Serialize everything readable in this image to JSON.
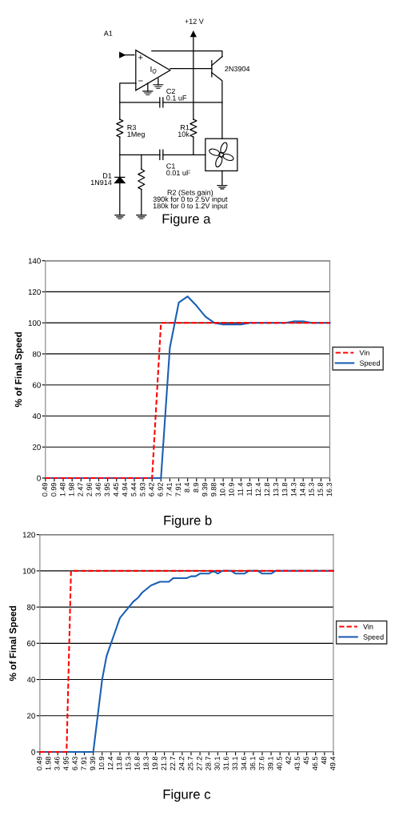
{
  "chart_data": [
    {
      "type": "other",
      "title": "Figure a",
      "annotations": [
        "A1",
        "+12 V",
        "+",
        "−",
        "I$_{Q}$",
        "2N3904",
        "C2\n0.1 uF",
        "R3\n1Meg",
        "R1\n10k",
        "C1\n0.01 uF",
        "D1\n1N914",
        "R2 (Sets gain)\n390k for 0 to 2.5V input\n180k for 0 to 1.2V input"
      ]
    },
    {
      "type": "line",
      "title": "Figure b",
      "ylabel": "% of Final Speed",
      "categories": [
        "0.49",
        "0.99",
        "1.48",
        "1.98",
        "2.47",
        "2.96",
        "3.46",
        "3.95",
        "4.45",
        "4.94",
        "5.44",
        "5.93",
        "6.42",
        "6.92",
        "7.41",
        "7.91",
        "8.4",
        "8.9",
        "9.39",
        "9.88",
        "10.4",
        "10.9",
        "11.4",
        "11.9",
        "12.4",
        "12.8",
        "13.3",
        "13.8",
        "14.3",
        "14.8",
        "15.3",
        "15.8",
        "16.3"
      ],
      "series": [
        {
          "name": "Vin",
          "color": "#ff0000",
          "line_style": "dashed",
          "values": [
            0,
            0,
            0,
            0,
            0,
            0,
            0,
            0,
            0,
            0,
            0,
            0,
            0,
            100,
            100,
            100,
            100,
            100,
            100,
            100,
            100,
            100,
            100,
            100,
            100,
            100,
            100,
            100,
            100,
            100,
            100,
            100,
            100
          ]
        },
        {
          "name": "Speed",
          "color": "#1a5fb4",
          "line_style": "solid",
          "values": [
            0,
            0,
            0,
            0,
            0,
            0,
            0,
            0,
            0,
            0,
            0,
            0,
            0,
            0,
            84,
            113,
            117,
            111,
            104,
            100,
            99,
            99,
            99,
            100,
            100,
            100,
            100,
            100,
            101,
            101,
            100,
            100,
            100
          ]
        }
      ],
      "ylim": [
        0,
        140
      ],
      "yticks": [
        0,
        20,
        40,
        60,
        80,
        100,
        120,
        140
      ],
      "grid": "y",
      "legend": "right",
      "marker": "none"
    },
    {
      "type": "line",
      "title": "Figure c",
      "ylabel": "% of Final Speed",
      "categories": [
        "0.49",
        null,
        "1.98",
        null,
        "3.46",
        null,
        "4.95",
        null,
        "6.43",
        null,
        "7.91",
        null,
        "9.39",
        null,
        "10.9",
        null,
        "12.4",
        null,
        "13.8",
        null,
        "15.3",
        null,
        "16.8",
        null,
        "18.3",
        null,
        "19.8",
        null,
        "21.3",
        null,
        "22.7",
        null,
        "24.2",
        null,
        "25.7",
        null,
        "27.2",
        null,
        "28.7",
        null,
        "30.1",
        null,
        "31.6",
        null,
        "33.1",
        null,
        "34.6",
        null,
        "36.1",
        null,
        "37.6",
        null,
        "39.1",
        null,
        "40.5",
        null,
        "42",
        null,
        "43.5",
        null,
        "45",
        null,
        "46.5",
        null,
        "48",
        null,
        "49.4"
      ],
      "series": [
        {
          "name": "Vin",
          "color": "#ff0000",
          "line_style": "dashed",
          "values": [
            0,
            0,
            0,
            0,
            0,
            0,
            0,
            100,
            100,
            100,
            100,
            100,
            100,
            100,
            100,
            100,
            100,
            100,
            100,
            100,
            100,
            100,
            100,
            100,
            100,
            100,
            100,
            100,
            100,
            100,
            100,
            100,
            100,
            100,
            100,
            100,
            100,
            100,
            100,
            100,
            100,
            100,
            100,
            100,
            100,
            100,
            100,
            100,
            100,
            100,
            100,
            100,
            100,
            100,
            100,
            100,
            100,
            100,
            100,
            100,
            100,
            100,
            100,
            100,
            100,
            100,
            100
          ]
        },
        {
          "name": "Speed",
          "color": "#1a5fb4",
          "line_style": "solid",
          "values": [
            0,
            0,
            0,
            0,
            0,
            0,
            0,
            0,
            0,
            0,
            0,
            0,
            0,
            20,
            40,
            53,
            60,
            67,
            74,
            77,
            80,
            83,
            85,
            88,
            90,
            92,
            93,
            94,
            94,
            94,
            96,
            96,
            96,
            96,
            97,
            97,
            98.5,
            98.5,
            98.5,
            100,
            98.5,
            100,
            100,
            100,
            98.5,
            98.5,
            98.5,
            100,
            100,
            100,
            98.5,
            98.5,
            98.5,
            100,
            100,
            100,
            100,
            100,
            100,
            100,
            100,
            100,
            100,
            100,
            100,
            100,
            100
          ]
        }
      ],
      "ylim": [
        0,
        120
      ],
      "yticks": [
        0,
        20,
        40,
        60,
        80,
        100,
        120
      ],
      "grid": "y",
      "legend": "right",
      "marker": "none"
    }
  ]
}
